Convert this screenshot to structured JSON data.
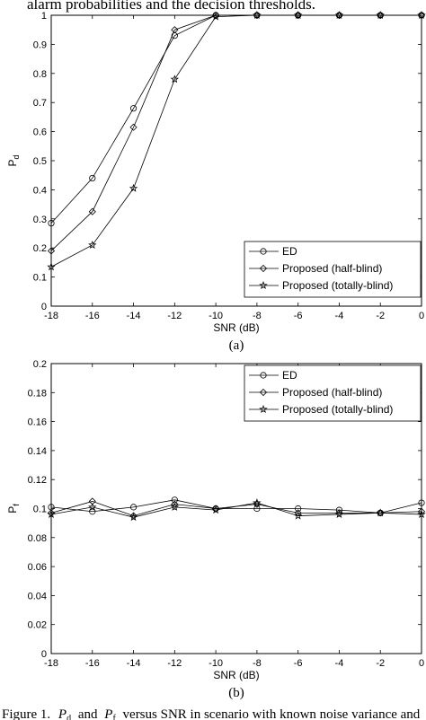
{
  "header_text": "alarm probabilities and the decision thresholds.",
  "caption": {
    "prefix": "Figure 1.",
    "sym1": "P",
    "sub1": "d",
    "mid": "and",
    "sym2": "P",
    "sub2": "f",
    "rest": "versus SNR in scenario with known noise variance and"
  },
  "chart_data": [
    {
      "type": "line",
      "panel_label": "(a)",
      "xlabel": "SNR (dB)",
      "ylabel_main": "P",
      "ylabel_sub": "d",
      "xlim": [
        -18,
        0
      ],
      "ylim": [
        0,
        1
      ],
      "xticks": [
        -18,
        -16,
        -14,
        -12,
        -10,
        -8,
        -6,
        -4,
        -2,
        0
      ],
      "xtick_labels": [
        "-18",
        "-16",
        "-14",
        "-12",
        "-10",
        "-8",
        "-6",
        "-4",
        "-2",
        "0"
      ],
      "yticks": [
        0,
        0.1,
        0.2,
        0.3,
        0.4,
        0.5,
        0.6,
        0.7,
        0.8,
        0.9,
        1
      ],
      "ytick_labels": [
        "0",
        "0.1",
        "0.2",
        "0.3",
        "0.4",
        "0.5",
        "0.6",
        "0.7",
        "0.8",
        "0.9",
        "1"
      ],
      "grid": false,
      "legend_position": "bottom-right",
      "x": [
        -18,
        -16,
        -14,
        -12,
        -10,
        -8,
        -6,
        -4,
        -2,
        0
      ],
      "series": [
        {
          "name": "ED",
          "marker": "circle",
          "values": [
            0.285,
            0.44,
            0.68,
            0.93,
            1.0,
            1.0,
            1.0,
            1.0,
            1.0,
            1.0
          ]
        },
        {
          "name": "Proposed (half-blind)",
          "marker": "diamond",
          "values": [
            0.19,
            0.325,
            0.615,
            0.95,
            1.0,
            1.0,
            1.0,
            1.0,
            1.0,
            1.0
          ]
        },
        {
          "name": "Proposed (totally-blind)",
          "marker": "star",
          "values": [
            0.135,
            0.21,
            0.405,
            0.78,
            0.995,
            1.0,
            1.0,
            1.0,
            1.0,
            1.0
          ]
        }
      ]
    },
    {
      "type": "line",
      "panel_label": "(b)",
      "xlabel": "SNR (dB)",
      "ylabel_main": "P",
      "ylabel_sub": "f",
      "xlim": [
        -18,
        0
      ],
      "ylim": [
        0,
        0.2
      ],
      "xticks": [
        -18,
        -16,
        -14,
        -12,
        -10,
        -8,
        -6,
        -4,
        -2,
        0
      ],
      "xtick_labels": [
        "-18",
        "-16",
        "-14",
        "-12",
        "-10",
        "-8",
        "-6",
        "-4",
        "-2",
        "0"
      ],
      "yticks": [
        0,
        0.02,
        0.04,
        0.06,
        0.08,
        0.1,
        0.12,
        0.14,
        0.16,
        0.18,
        0.2
      ],
      "ytick_labels": [
        "0",
        "0.02",
        "0.04",
        "0.06",
        "0.08",
        "0.1",
        "0.12",
        "0.14",
        "0.16",
        "0.18",
        "0.2"
      ],
      "grid": false,
      "legend_position": "top-right",
      "x": [
        -18,
        -16,
        -14,
        -12,
        -10,
        -8,
        -6,
        -4,
        -2,
        0
      ],
      "series": [
        {
          "name": "ED",
          "marker": "circle",
          "values": [
            0.101,
            0.098,
            0.101,
            0.106,
            0.1,
            0.1,
            0.1,
            0.099,
            0.097,
            0.104
          ]
        },
        {
          "name": "Proposed (half-blind)",
          "marker": "diamond",
          "values": [
            0.097,
            0.105,
            0.095,
            0.103,
            0.1,
            0.103,
            0.097,
            0.097,
            0.097,
            0.098
          ]
        },
        {
          "name": "Proposed (totally-blind)",
          "marker": "star",
          "values": [
            0.096,
            0.101,
            0.094,
            0.101,
            0.099,
            0.104,
            0.095,
            0.096,
            0.097,
            0.096
          ]
        }
      ]
    }
  ]
}
